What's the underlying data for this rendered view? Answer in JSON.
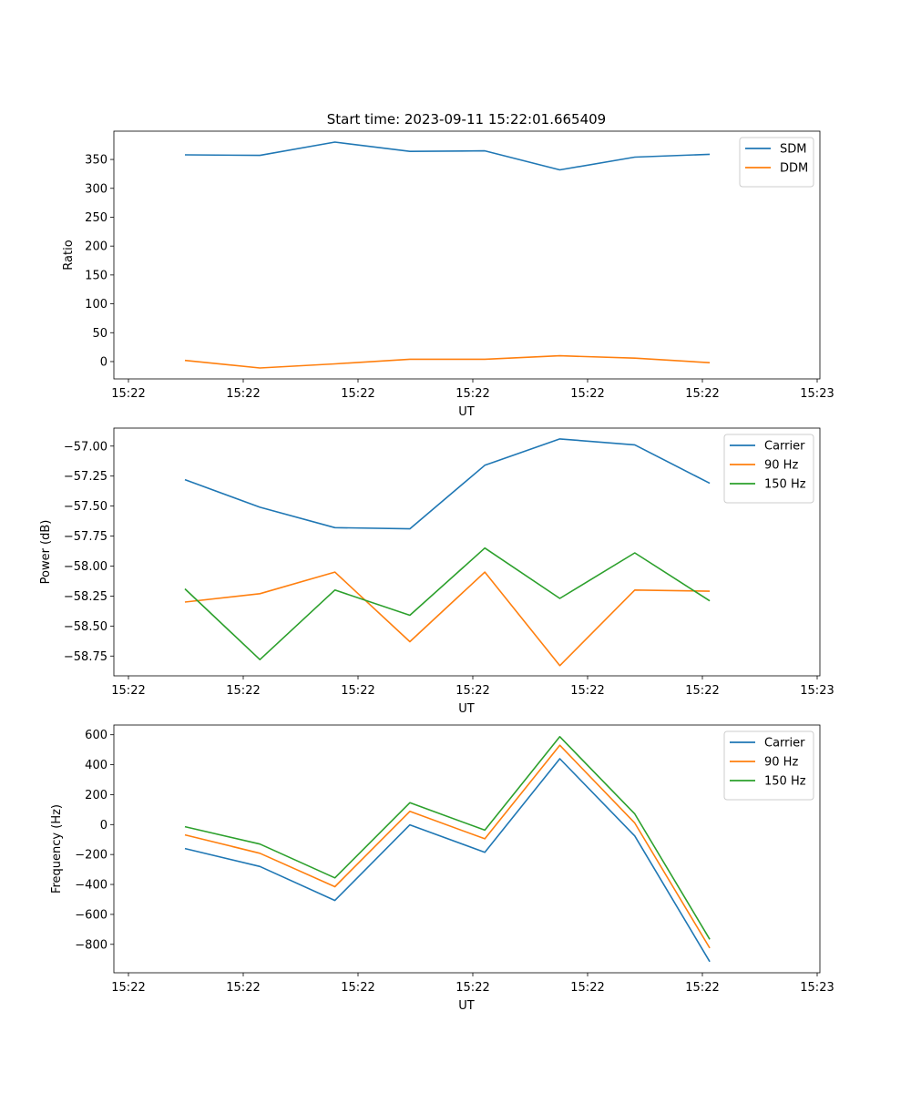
{
  "figure": {
    "title": "Start time: 2023-09-11 15:22:01.665409"
  },
  "chart_data": [
    {
      "type": "line",
      "title": "Start time: 2023-09-11 15:22:01.665409",
      "xlabel": "UT",
      "ylabel": "Ratio",
      "x_tick_labels": [
        "15:22",
        "15:22",
        "15:22",
        "15:22",
        "15:22",
        "15:22",
        "15:23"
      ],
      "y_ticks": [
        0,
        50,
        100,
        150,
        200,
        250,
        300,
        350
      ],
      "y_tick_labels": [
        "0",
        "50",
        "100",
        "150",
        "200",
        "250",
        "300",
        "350"
      ],
      "ylim": [
        -30,
        399
      ],
      "legend_position": "upper-right",
      "series": [
        {
          "name": "SDM",
          "color": "#1f77b4",
          "values": [
            358,
            357,
            380,
            364,
            365,
            332,
            354,
            359
          ]
        },
        {
          "name": "DDM",
          "color": "#ff7f0e",
          "values": [
            2,
            -11,
            -4,
            4,
            4,
            10,
            6,
            -2
          ]
        }
      ]
    },
    {
      "type": "line",
      "title": "",
      "xlabel": "UT",
      "ylabel": "Power (dB)",
      "x_tick_labels": [
        "15:22",
        "15:22",
        "15:22",
        "15:22",
        "15:22",
        "15:22",
        "15:23"
      ],
      "y_ticks": [
        -58.75,
        -58.5,
        -58.25,
        -58.0,
        -57.75,
        -57.5,
        -57.25,
        -57.0
      ],
      "y_tick_labels": [
        "−58.75",
        "−58.50",
        "−58.25",
        "−58.00",
        "−57.75",
        "−57.50",
        "−57.25",
        "−57.00"
      ],
      "ylim": [
        -58.915,
        -56.85
      ],
      "legend_position": "upper-right",
      "series": [
        {
          "name": "Carrier",
          "color": "#1f77b4",
          "values": [
            -57.28,
            -57.51,
            -57.68,
            -57.69,
            -57.16,
            -56.94,
            -56.99,
            -57.31
          ]
        },
        {
          "name": "90 Hz",
          "color": "#ff7f0e",
          "values": [
            -58.3,
            -58.23,
            -58.05,
            -58.63,
            -58.05,
            -58.83,
            -58.2,
            -58.21
          ]
        },
        {
          "name": "150 Hz",
          "color": "#2ca02c",
          "values": [
            -58.19,
            -58.78,
            -58.2,
            -58.41,
            -57.85,
            -58.27,
            -57.89,
            -58.29
          ]
        }
      ]
    },
    {
      "type": "line",
      "title": "",
      "xlabel": "UT",
      "ylabel": "Frequency (Hz)",
      "x_tick_labels": [
        "15:22",
        "15:22",
        "15:22",
        "15:22",
        "15:22",
        "15:22",
        "15:23"
      ],
      "y_ticks": [
        -800,
        -600,
        -400,
        -200,
        0,
        200,
        400,
        600
      ],
      "y_tick_labels": [
        "−800",
        "−600",
        "−400",
        "−200",
        "0",
        "200",
        "400",
        "600"
      ],
      "ylim": [
        -990,
        665
      ],
      "legend_position": "upper-right",
      "series": [
        {
          "name": "Carrier",
          "color": "#1f77b4",
          "values": [
            -160,
            -280,
            -507,
            -2,
            -185,
            440,
            -76,
            -916
          ]
        },
        {
          "name": "90 Hz",
          "color": "#ff7f0e",
          "values": [
            -69,
            -192,
            -415,
            88,
            -95,
            530,
            10,
            -825
          ]
        },
        {
          "name": "150 Hz",
          "color": "#2ca02c",
          "values": [
            -14,
            -130,
            -356,
            146,
            -37,
            587,
            71,
            -767
          ]
        }
      ]
    }
  ]
}
